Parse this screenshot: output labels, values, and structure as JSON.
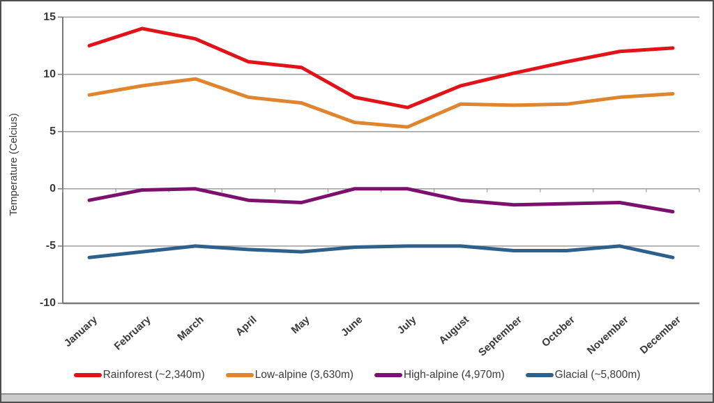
{
  "chart_data": {
    "type": "line",
    "title": "",
    "xlabel": "",
    "ylabel": "Temperature (Celcius)",
    "ylim": [
      -10,
      15
    ],
    "y_ticks": [
      15,
      10,
      5,
      0,
      -5,
      -10
    ],
    "grid": true,
    "legend_position": "bottom",
    "categories": [
      "January",
      "February",
      "March",
      "April",
      "May",
      "June",
      "July",
      "August",
      "September",
      "October",
      "November",
      "December"
    ],
    "series": [
      {
        "id": "rainforest",
        "name": "Rainforest (~2,340m)",
        "color": "#e11218",
        "values": [
          12.5,
          14.0,
          13.1,
          11.1,
          10.6,
          8.0,
          7.1,
          9.0,
          10.1,
          11.1,
          12.0,
          12.3
        ]
      },
      {
        "id": "low-alpine",
        "name": "Low-alpine (3,630m)",
        "color": "#e0852d",
        "values": [
          8.2,
          9.0,
          9.6,
          8.0,
          7.5,
          5.8,
          5.4,
          7.4,
          7.3,
          7.4,
          8.0,
          8.3
        ]
      },
      {
        "id": "high-alpine",
        "name": "High-alpine (4,970m)",
        "color": "#7c106e",
        "values": [
          -1.0,
          -0.1,
          0.0,
          -1.0,
          -1.2,
          0.0,
          0.0,
          -1.0,
          -1.4,
          -1.3,
          -1.2,
          -2.0
        ]
      },
      {
        "id": "glacial",
        "name": "Glacial (~5,800m)",
        "color": "#2e608c",
        "values": [
          -6.0,
          -5.5,
          -5.0,
          -5.3,
          -5.5,
          -5.1,
          -5.0,
          -5.0,
          -5.4,
          -5.4,
          -5.0,
          -6.0
        ]
      }
    ],
    "grid_color": "#9d9d9d",
    "axis_color": "#787878",
    "text_color": "#393939"
  }
}
